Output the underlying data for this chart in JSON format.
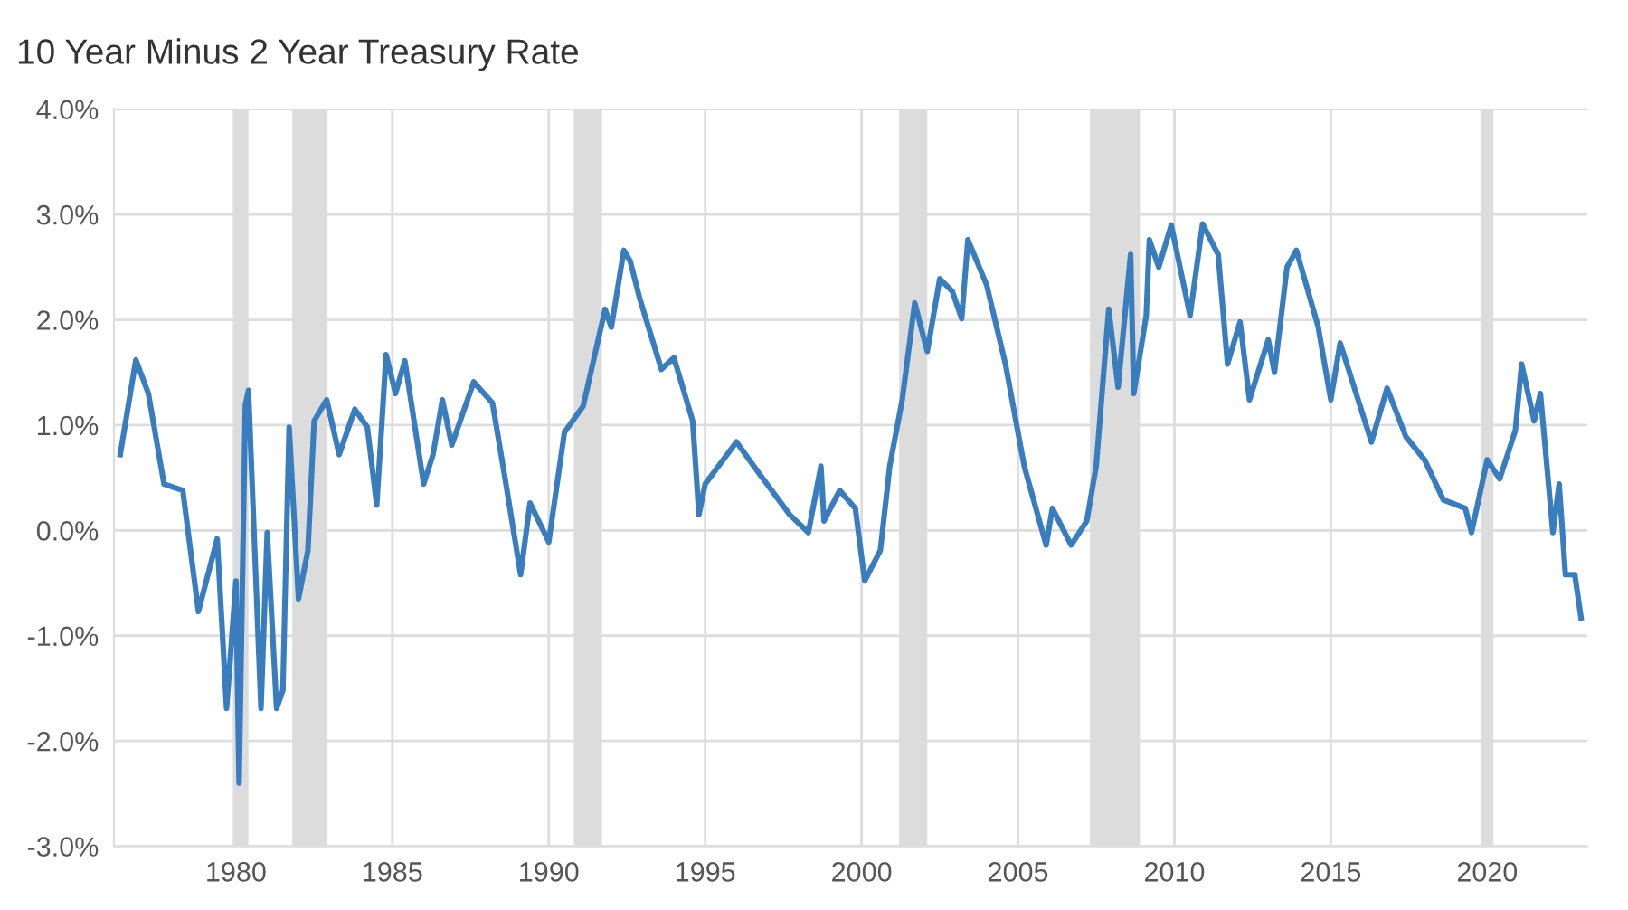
{
  "chart_data": {
    "type": "line",
    "title": "10 Year Minus 2 Year Treasury Rate",
    "x": [
      1976.3,
      1976.8,
      1977.2,
      1977.7,
      1978.3,
      1978.8,
      1979.4,
      1979.7,
      1980.0,
      1980.1,
      1980.3,
      1980.4,
      1980.8,
      1981.0,
      1981.3,
      1981.5,
      1981.7,
      1982.0,
      1982.3,
      1982.5,
      1982.9,
      1983.3,
      1983.8,
      1984.2,
      1984.5,
      1984.8,
      1985.1,
      1985.4,
      1986.0,
      1986.3,
      1986.6,
      1986.9,
      1987.6,
      1988.2,
      1988.6,
      1989.1,
      1989.4,
      1990.0,
      1990.5,
      1991.1,
      1991.8,
      1992.0,
      1992.4,
      1992.6,
      1992.9,
      1993.6,
      1994.0,
      1994.6,
      1994.8,
      1995.0,
      1996.0,
      1996.7,
      1997.7,
      1998.3,
      1998.7,
      1998.8,
      1999.3,
      1999.8,
      2000.1,
      2000.6,
      2000.9,
      2001.3,
      2001.7,
      2002.1,
      2002.5,
      2002.9,
      2003.2,
      2003.4,
      2004.0,
      2004.6,
      2005.2,
      2005.9,
      2006.1,
      2006.7,
      2007.2,
      2007.5,
      2007.9,
      2008.2,
      2008.6,
      2008.7,
      2009.1,
      2009.2,
      2009.5,
      2009.9,
      2010.5,
      2010.9,
      2011.4,
      2011.7,
      2012.1,
      2012.4,
      2013.0,
      2013.2,
      2013.6,
      2013.9,
      2014.6,
      2015.0,
      2015.3,
      2016.3,
      2016.8,
      2017.4,
      2018.0,
      2018.6,
      2019.3,
      2019.5,
      2020.0,
      2020.4,
      2020.9,
      2021.1,
      2021.5,
      2021.7,
      2022.1,
      2022.3,
      2022.5,
      2022.8,
      2023.0
    ],
    "series": [
      {
        "color": "#3a7dbf",
        "values": [
          0.72,
          1.62,
          1.3,
          0.44,
          0.38,
          -0.77,
          -0.08,
          -1.69,
          -0.48,
          -2.4,
          1.19,
          1.33,
          -1.69,
          -0.02,
          -1.69,
          -1.52,
          0.98,
          -0.65,
          -0.19,
          1.04,
          1.24,
          0.72,
          1.15,
          0.98,
          0.24,
          1.67,
          1.3,
          1.61,
          0.44,
          0.72,
          1.24,
          0.81,
          1.41,
          1.21,
          0.5,
          -0.42,
          0.26,
          -0.11,
          0.93,
          1.18,
          2.1,
          1.93,
          2.66,
          2.56,
          2.21,
          1.53,
          1.64,
          1.04,
          0.15,
          0.44,
          0.84,
          0.55,
          0.15,
          -0.02,
          0.61,
          0.09,
          0.38,
          0.21,
          -0.48,
          -0.19,
          0.61,
          1.24,
          2.16,
          1.7,
          2.39,
          2.27,
          2.01,
          2.76,
          2.33,
          1.58,
          0.61,
          -0.14,
          0.21,
          -0.14,
          0.09,
          0.61,
          2.1,
          1.36,
          2.62,
          1.3,
          2.04,
          2.76,
          2.5,
          2.9,
          2.04,
          2.91,
          2.62,
          1.58,
          1.98,
          1.24,
          1.81,
          1.5,
          2.5,
          2.66,
          1.93,
          1.24,
          1.78,
          0.84,
          1.35,
          0.89,
          0.67,
          0.29,
          0.21,
          -0.02,
          0.67,
          0.49,
          0.95,
          1.58,
          1.04,
          1.3,
          -0.02,
          0.44,
          -0.42,
          -0.42,
          -0.83
        ]
      }
    ],
    "bands": [
      {
        "axis": "x",
        "from": 1979.9,
        "to": 1980.4,
        "color": "#dcdcdc"
      },
      {
        "axis": "x",
        "from": 1981.8,
        "to": 1982.9,
        "color": "#dcdcdc"
      },
      {
        "axis": "x",
        "from": 1990.8,
        "to": 1991.7,
        "color": "#dcdcdc"
      },
      {
        "axis": "x",
        "from": 2001.2,
        "to": 2002.1,
        "color": "#dcdcdc"
      },
      {
        "axis": "x",
        "from": 2007.3,
        "to": 2008.9,
        "color": "#dcdcdc"
      },
      {
        "axis": "x",
        "from": 2019.8,
        "to": 2020.2,
        "color": "#dcdcdc"
      }
    ],
    "xlim": [
      1976.1,
      2023.2
    ],
    "xticks": [
      1980,
      1985,
      1990,
      1995,
      2000,
      2005,
      2010,
      2015,
      2020
    ],
    "ylim": [
      -3,
      4
    ],
    "yticks": [
      {
        "value": -3,
        "label": "-3.0%"
      },
      {
        "value": -2,
        "label": "-2.0%"
      },
      {
        "value": -1,
        "label": "-1.0%"
      },
      {
        "value": 0,
        "label": "0.0%"
      },
      {
        "value": 1,
        "label": "1.0%"
      },
      {
        "value": 2,
        "label": "2.0%"
      },
      {
        "value": 3,
        "label": "3.0%"
      },
      {
        "value": 4,
        "label": "4.0%"
      }
    ],
    "grid": true,
    "line_style": "solid"
  }
}
